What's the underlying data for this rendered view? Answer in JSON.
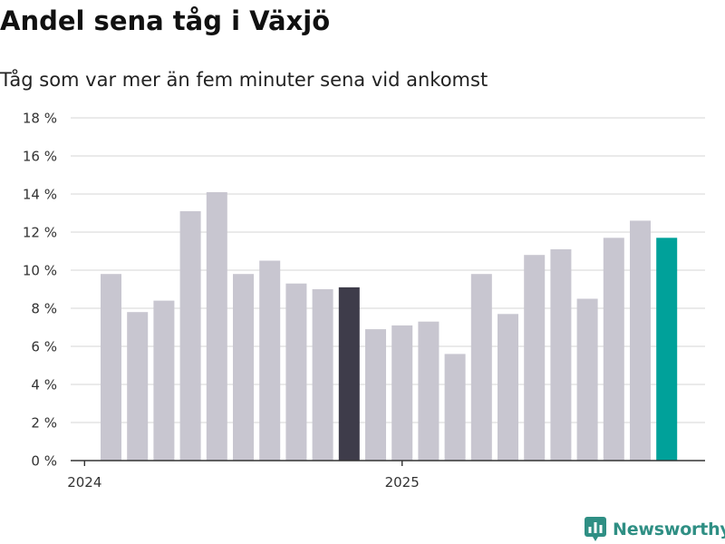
{
  "chart_data": {
    "type": "bar",
    "title": "Andel sena tåg i Växjö",
    "subtitle": "Tåg som var mer än fem minuter sena vid ankomst",
    "xlabel": "",
    "ylabel": "",
    "ylim": [
      0,
      18
    ],
    "y_ticks": [
      0,
      2,
      4,
      6,
      8,
      10,
      12,
      14,
      16,
      18
    ],
    "y_tick_labels": [
      "0 %",
      "2 %",
      "4 %",
      "6 %",
      "8 %",
      "10 %",
      "12 %",
      "14 %",
      "16 %",
      "18 %"
    ],
    "x_tick_labels": [
      {
        "label": "2024",
        "position": -1
      },
      {
        "label": "2025",
        "position": 11
      }
    ],
    "grid": true,
    "values": [
      9.8,
      7.8,
      8.4,
      13.1,
      14.1,
      9.8,
      10.5,
      9.3,
      9.0,
      9.1,
      6.9,
      7.1,
      7.3,
      5.6,
      9.8,
      7.7,
      10.8,
      11.1,
      8.5,
      11.7,
      12.6,
      11.7
    ],
    "highlight": {
      "9": "dark",
      "21": "accent"
    },
    "colors": {
      "default": "#c8c6d0",
      "dark": "#3e3c4a",
      "accent": "#00a19a",
      "grid": "#e3e3e3",
      "axis": "#333333"
    }
  },
  "brand": {
    "name": "Newsworthy",
    "icon": "newsworthy-logo-icon",
    "color": "#2f8f84"
  }
}
